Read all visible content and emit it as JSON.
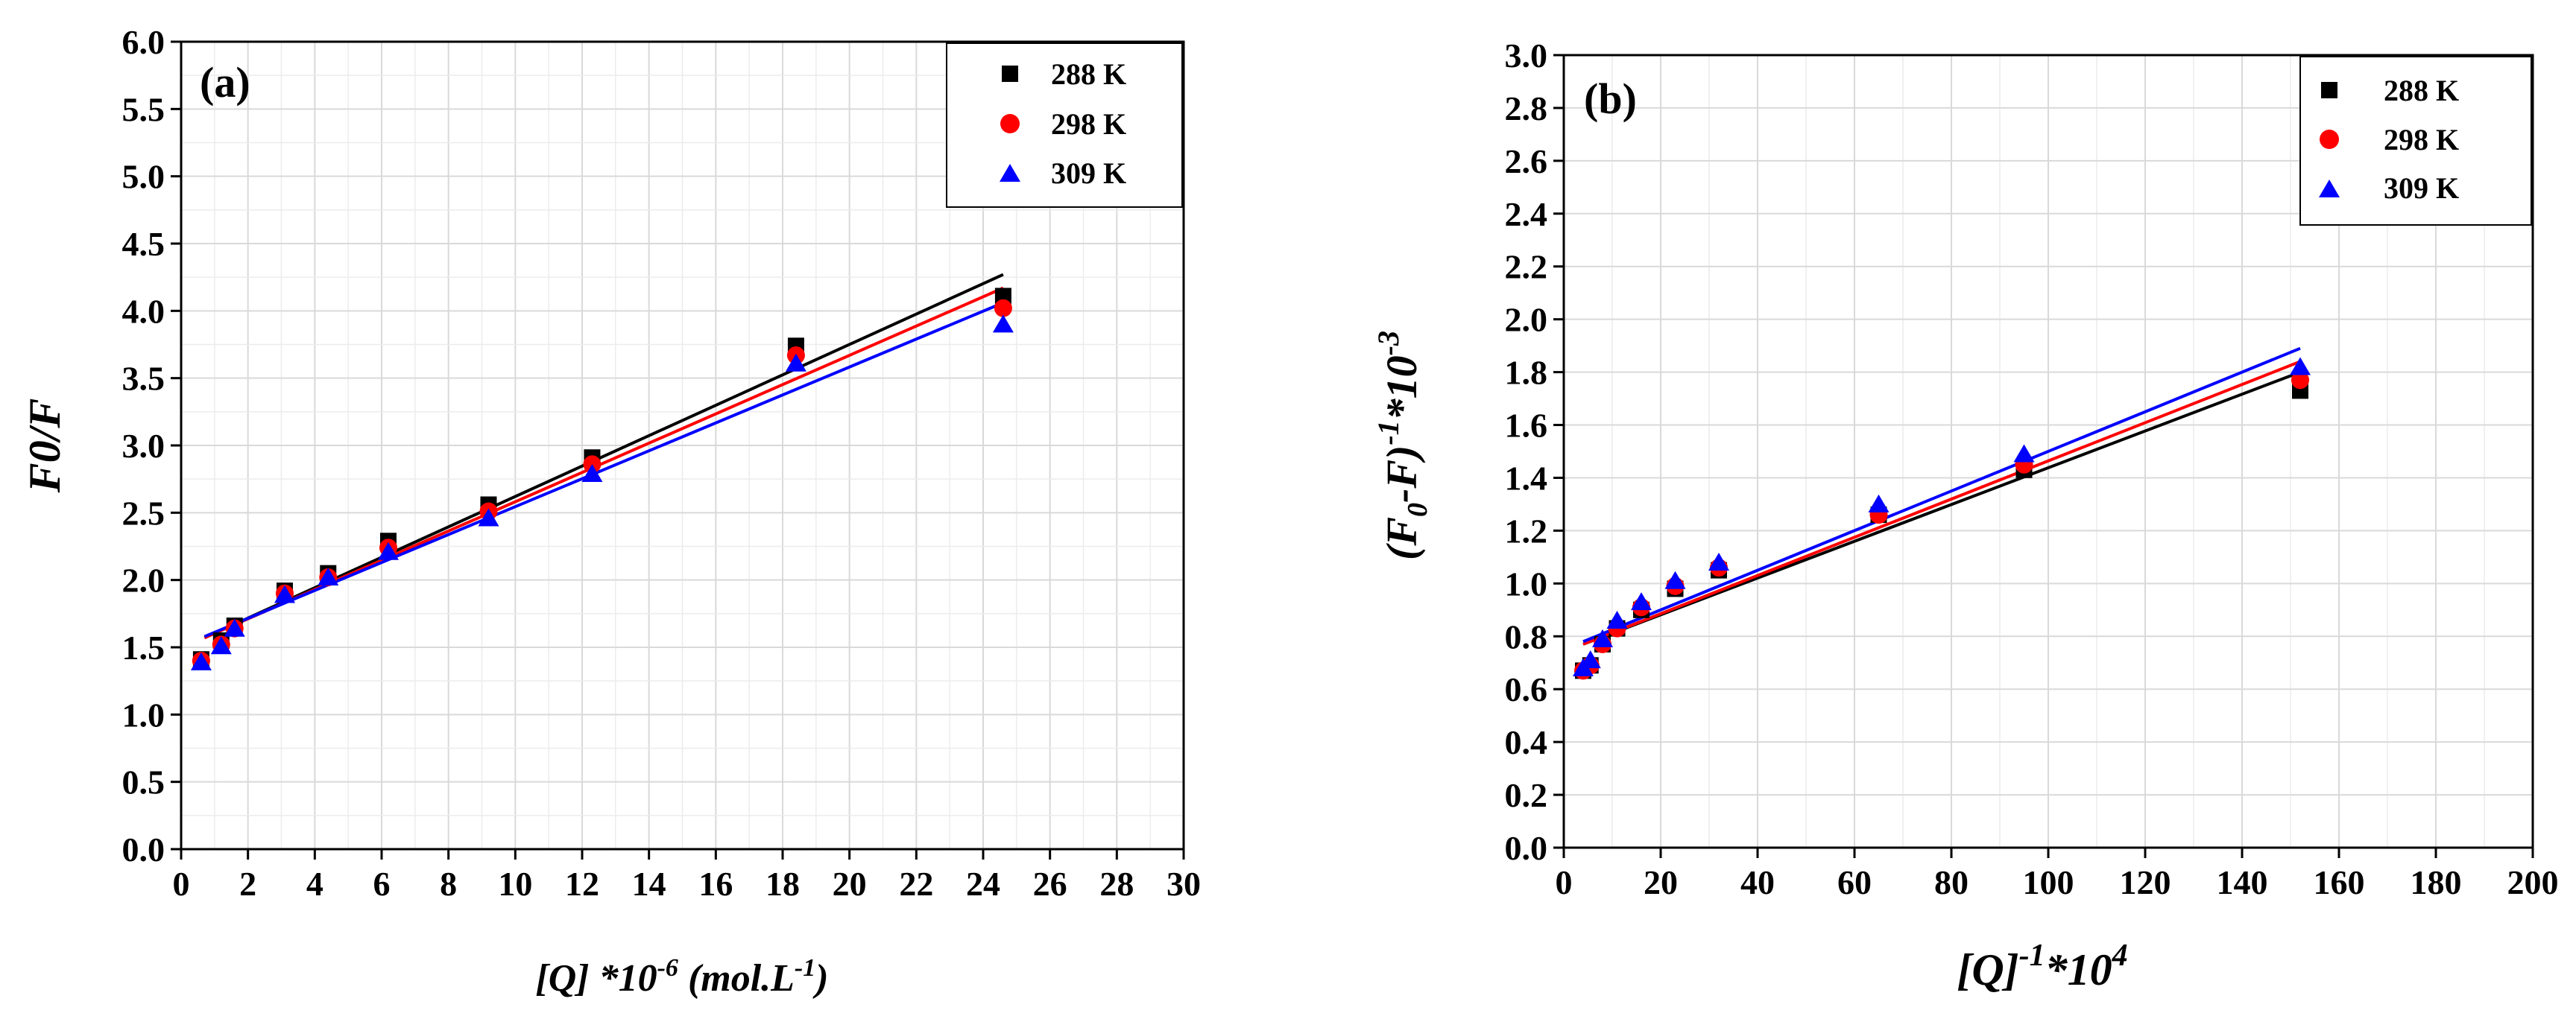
{
  "chart_data": [
    {
      "type": "scatter",
      "panel_label": "(a)",
      "title": "",
      "ylabel": "F0/F",
      "xlabel_parts": [
        "[Q] *10",
        "-6",
        " (mol.L",
        "-1",
        ")"
      ],
      "xlim": [
        0,
        30
      ],
      "ylim": [
        0,
        6
      ],
      "xticks": [
        "0",
        "2",
        "4",
        "6",
        "8",
        "10",
        "12",
        "14",
        "16",
        "18",
        "20",
        "22",
        "24",
        "26",
        "28",
        "30"
      ],
      "yticks": [
        "0.0",
        "0.5",
        "1.0",
        "1.5",
        "2.0",
        "2.5",
        "3.0",
        "3.5",
        "4.0",
        "4.5",
        "5.0",
        "5.5",
        "6.0"
      ],
      "legend_position": "top-right",
      "series": [
        {
          "name": "288 K",
          "color": "#000000",
          "marker": "square",
          "x": [
            0.6,
            1.2,
            1.6,
            3.1,
            4.4,
            6.2,
            9.2,
            12.3,
            18.4,
            24.6
          ],
          "y": [
            1.41,
            1.55,
            1.66,
            1.92,
            2.05,
            2.29,
            2.56,
            2.91,
            3.74,
            4.11
          ],
          "fit": {
            "x": [
              0.7,
              24.6
            ],
            "y": [
              1.57,
              4.27
            ]
          }
        },
        {
          "name": "298 K",
          "color": "#ff0000",
          "marker": "circle",
          "x": [
            0.6,
            1.2,
            1.6,
            3.1,
            4.4,
            6.2,
            9.2,
            12.3,
            18.4,
            24.6
          ],
          "y": [
            1.4,
            1.52,
            1.64,
            1.9,
            2.02,
            2.24,
            2.51,
            2.86,
            3.67,
            4.02
          ],
          "fit": {
            "x": [
              0.7,
              24.6
            ],
            "y": [
              1.57,
              4.17
            ]
          }
        },
        {
          "name": "309 K",
          "color": "#0000ff",
          "marker": "triangle",
          "x": [
            0.6,
            1.2,
            1.6,
            3.1,
            4.4,
            6.2,
            9.2,
            12.3,
            18.4,
            24.6
          ],
          "y": [
            1.39,
            1.51,
            1.64,
            1.89,
            2.02,
            2.21,
            2.46,
            2.79,
            3.61,
            3.9
          ],
          "fit": {
            "x": [
              0.7,
              24.6
            ],
            "y": [
              1.58,
              4.06
            ]
          }
        }
      ]
    },
    {
      "type": "scatter",
      "panel_label": "(b)",
      "title": "",
      "ylabel_parts": [
        "(F",
        "0",
        "-F)",
        "-1",
        "*10",
        "-3"
      ],
      "xlabel_parts": [
        "[Q]",
        "-1",
        "*10",
        "4"
      ],
      "xlim": [
        0,
        200
      ],
      "ylim": [
        0,
        3
      ],
      "xticks": [
        "0",
        "20",
        "40",
        "60",
        "80",
        "100",
        "120",
        "140",
        "160",
        "180",
        "200"
      ],
      "yticks": [
        "0.0",
        "0.2",
        "0.4",
        "0.6",
        "0.8",
        "1.0",
        "1.2",
        "1.4",
        "1.6",
        "1.8",
        "2.0",
        "2.2",
        "2.4",
        "2.6",
        "2.8",
        "3.0"
      ],
      "legend_position": "top-right",
      "series": [
        {
          "name": "288 K",
          "color": "#000000",
          "marker": "square",
          "x": [
            4,
            5.5,
            8,
            11,
            16,
            23,
            32,
            65,
            95,
            152
          ],
          "y": [
            0.67,
            0.69,
            0.77,
            0.83,
            0.9,
            0.98,
            1.05,
            1.26,
            1.43,
            1.73
          ],
          "fit": {
            "x": [
              4,
              152
            ],
            "y": [
              0.77,
              1.8
            ]
          }
        },
        {
          "name": "298 K",
          "color": "#ff0000",
          "marker": "circle",
          "x": [
            4,
            5.5,
            8,
            11,
            16,
            23,
            32,
            65,
            95,
            152
          ],
          "y": [
            0.67,
            0.69,
            0.77,
            0.83,
            0.91,
            0.99,
            1.06,
            1.26,
            1.45,
            1.77
          ],
          "fit": {
            "x": [
              4,
              152
            ],
            "y": [
              0.77,
              1.84
            ]
          }
        },
        {
          "name": "309 K",
          "color": "#0000ff",
          "marker": "triangle",
          "x": [
            4,
            5.5,
            8,
            11,
            16,
            23,
            32,
            65,
            95,
            152
          ],
          "y": [
            0.68,
            0.71,
            0.79,
            0.86,
            0.93,
            1.01,
            1.08,
            1.3,
            1.49,
            1.82
          ],
          "fit": {
            "x": [
              4,
              152
            ],
            "y": [
              0.78,
              1.89
            ]
          }
        }
      ]
    }
  ]
}
